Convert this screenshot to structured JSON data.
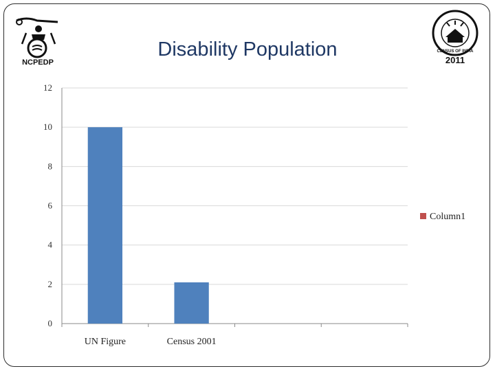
{
  "slide": {
    "title": "Disability Population",
    "logo_left_text": "NCPEDP",
    "logo_right_year": "2011",
    "logo_right_text": "CENSUS OF INDIA"
  },
  "chart_data": {
    "type": "bar",
    "categories": [
      "UN Figure",
      "Census 2001",
      "",
      ""
    ],
    "series": [
      {
        "values": [
          10,
          2.1,
          null,
          null
        ],
        "color": "#4f81bd"
      }
    ],
    "legend": [
      {
        "name": "Column1",
        "color": "#c0504d"
      }
    ],
    "legend_position": "right",
    "ylim": [
      0,
      12
    ],
    "yticks": [
      0,
      2,
      4,
      6,
      8,
      10,
      12
    ],
    "grid": true
  }
}
